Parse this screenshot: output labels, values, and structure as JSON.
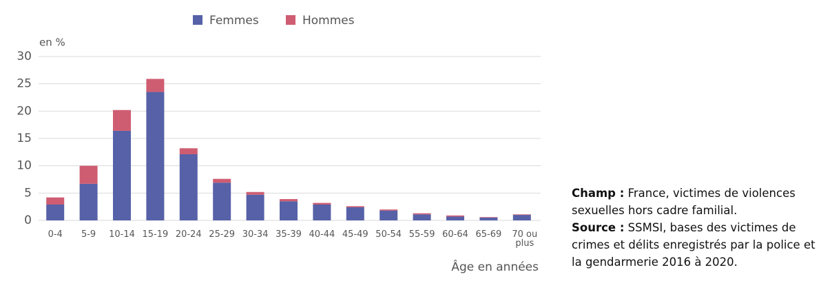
{
  "chart_data": {
    "type": "stacked_bar",
    "y_label": "en %",
    "x_label": "Âge en années",
    "categories": [
      "0-4",
      "5-9",
      "10-14",
      "15-19",
      "20-24",
      "25-29",
      "30-34",
      "35-39",
      "40-44",
      "45-49",
      "50-54",
      "55-59",
      "60-64",
      "65-69",
      "70 ou plus"
    ],
    "series": [
      {
        "name": "Femmes",
        "color": "#5661a8",
        "values": [
          2.9,
          6.7,
          16.4,
          23.5,
          12.1,
          6.9,
          4.7,
          3.5,
          2.9,
          2.4,
          1.8,
          1.1,
          0.7,
          0.5,
          1.0
        ]
      },
      {
        "name": "Hommes",
        "color": "#cf5d72",
        "values": [
          1.3,
          3.3,
          3.8,
          2.4,
          1.1,
          0.7,
          0.5,
          0.4,
          0.3,
          0.2,
          0.2,
          0.2,
          0.2,
          0.1,
          0.1
        ]
      }
    ],
    "ylim": [
      0,
      30
    ],
    "yticks": [
      0,
      5,
      10,
      15,
      20,
      25,
      30
    ],
    "grid": true
  },
  "notes": [
    {
      "label": "Champ :",
      "text": "France, victimes de violences sexuelles hors cadre familial."
    },
    {
      "label": "Source :",
      "text": "SSMSI, bases des victimes de crimes et délits enregistrés par la police et la gendarmerie 2016 à 2020."
    }
  ]
}
